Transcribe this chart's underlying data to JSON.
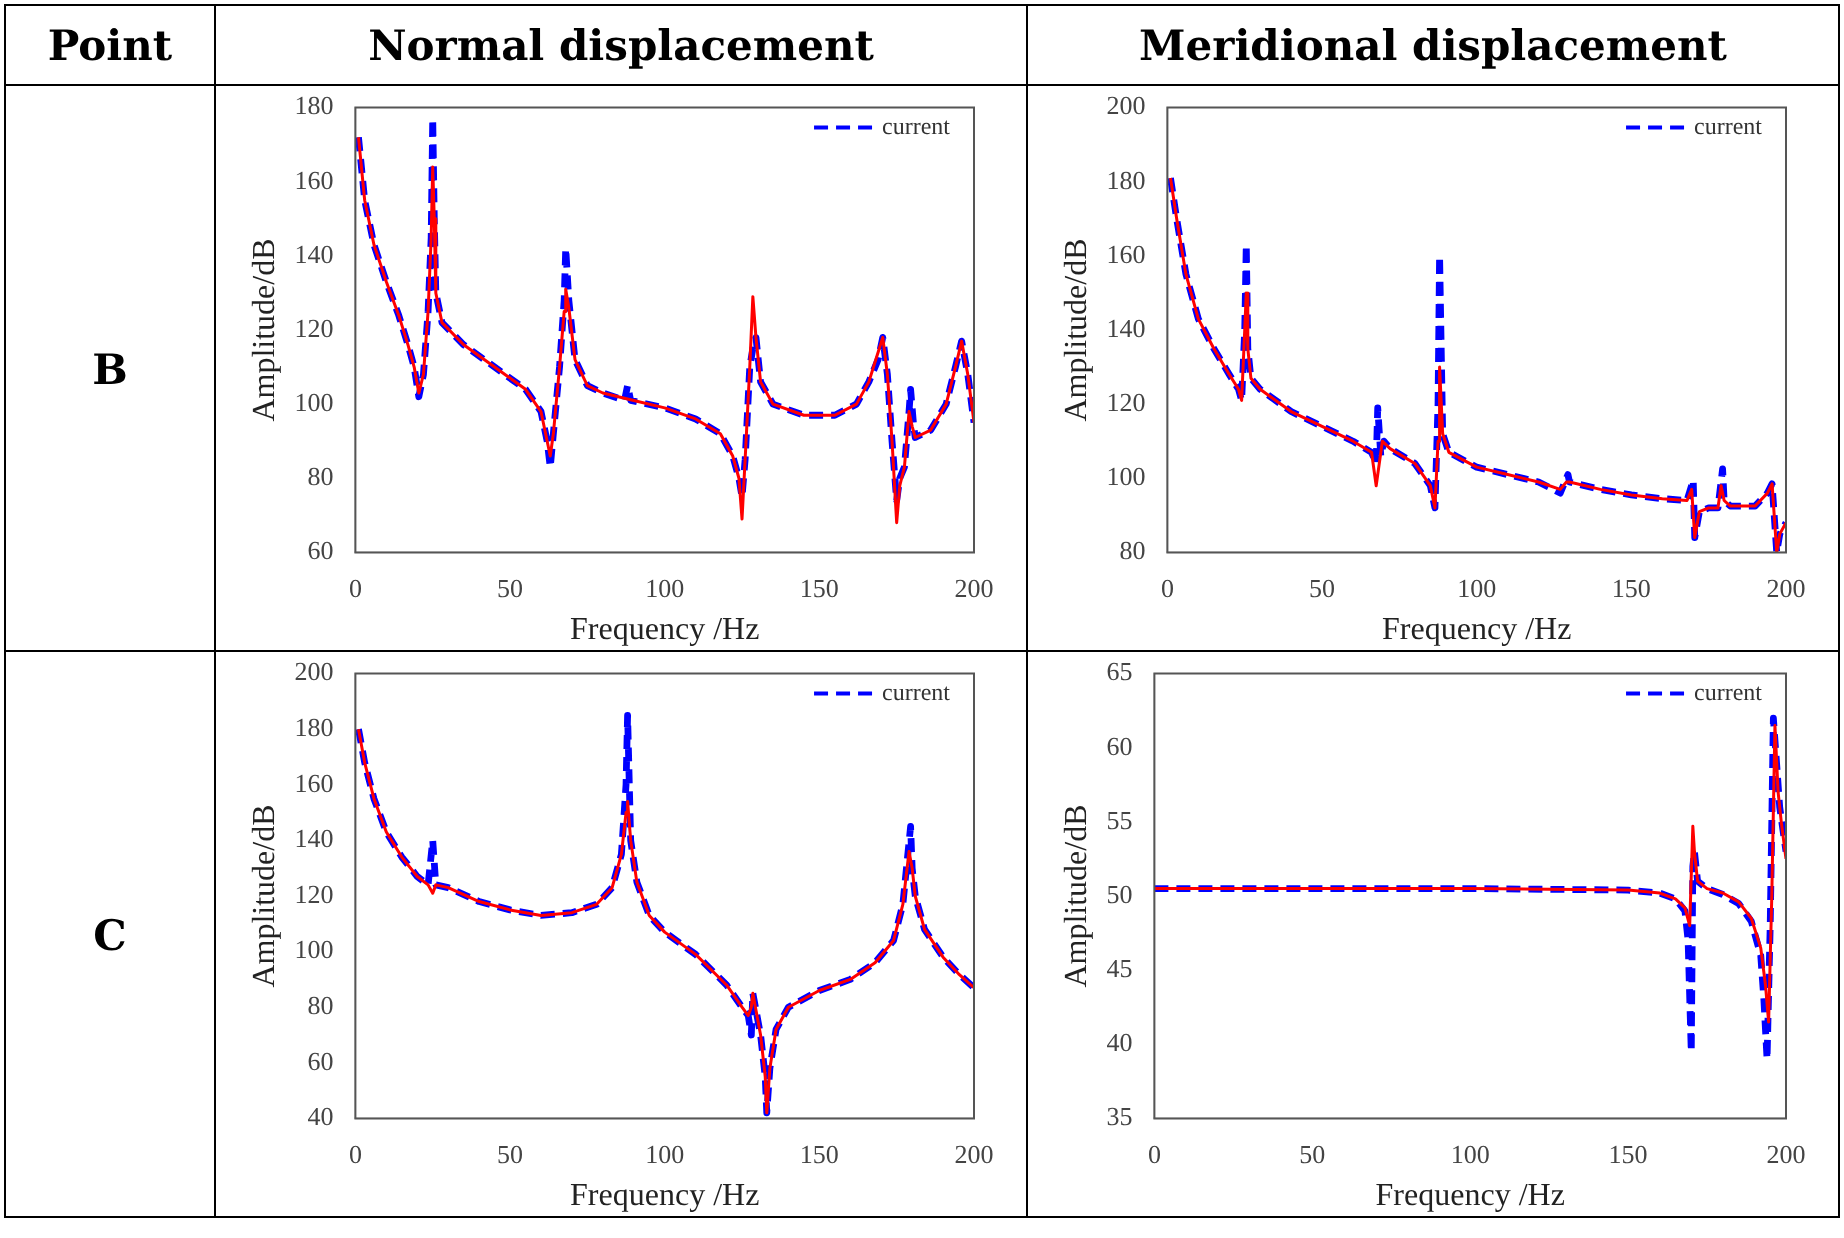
{
  "chart_data": [
    {
      "type": "other",
      "annotations": [
        "Point",
        "Normal displacement",
        "Meridional displacement",
        "B",
        "C"
      ]
    },
    {
      "type": "line",
      "xlabel": "Frequency /Hz",
      "ylabel": "Amplitude/dB",
      "xlim": [
        0,
        200
      ],
      "xticks": [
        0,
        50,
        100,
        150,
        200
      ],
      "ylim": [
        60,
        180
      ],
      "yticks": [
        60,
        80,
        100,
        120,
        140,
        160,
        180
      ],
      "legend": "top right",
      "series": [
        {
          "name": "current",
          "color": "#0000ff",
          "line_style": "dashed",
          "x": [
            1,
            3,
            6,
            10,
            14,
            17,
            19,
            20.5,
            22,
            23.5,
            24.5,
            25,
            25.5,
            26,
            28,
            35,
            45,
            55,
            60,
            62,
            63,
            64,
            66,
            67.5,
            68,
            69,
            71,
            75,
            80,
            87,
            88,
            89,
            100,
            110,
            118,
            122,
            124,
            125,
            126,
            127.5,
            128.5,
            129.5,
            131,
            135,
            145,
            155,
            162,
            166,
            169,
            170.5,
            172,
            173.5,
            175,
            176,
            177.5,
            179,
            179.5,
            180.5,
            181,
            186,
            191,
            194,
            196,
            198,
            200
          ],
          "values": [
            172,
            155,
            143,
            133,
            124,
            116,
            110,
            102,
            108,
            125,
            145,
            177,
            150,
            130,
            122,
            116,
            110,
            104,
            98,
            90,
            83,
            92,
            110,
            128,
            142,
            128,
            112,
            105,
            103,
            101,
            105,
            101,
            99,
            96,
            92,
            86,
            80,
            75,
            85,
            110,
            115,
            118,
            106,
            100,
            97,
            97,
            100,
            106,
            112,
            118,
            108,
            90,
            74,
            80,
            83,
            98,
            104,
            94,
            91,
            93,
            100,
            110,
            117,
            108,
            95
          ]
        },
        {
          "color": "#ff0000",
          "line_style": "solid",
          "x": [
            1,
            3,
            6,
            10,
            14,
            17,
            19,
            20.5,
            22,
            23.5,
            24.5,
            25,
            25.5,
            26,
            28,
            35,
            45,
            55,
            60,
            62,
            63,
            64,
            66,
            67.5,
            68,
            69,
            71,
            75,
            80,
            90,
            100,
            110,
            118,
            122,
            124,
            125,
            126,
            127.5,
            128.5,
            129.5,
            131,
            135,
            145,
            155,
            162,
            166,
            169,
            170.5,
            172,
            173.5,
            175,
            176,
            177.5,
            179,
            180,
            181,
            186,
            191,
            194,
            196,
            198,
            200
          ],
          "values": [
            172,
            155,
            143,
            133,
            124,
            116,
            110,
            103,
            108,
            125,
            145,
            164,
            150,
            130,
            122,
            116,
            110,
            104,
            98,
            90,
            86,
            92,
            110,
            125,
            131,
            126,
            112,
            105,
            103,
            101,
            99,
            96,
            92,
            86,
            80,
            69,
            85,
            110,
            129,
            118,
            106,
            100,
            97,
            97,
            100,
            106,
            114,
            118,
            108,
            90,
            68,
            78,
            83,
            98,
            94,
            91,
            93,
            100,
            110,
            117,
            108,
            95
          ]
        }
      ]
    },
    {
      "type": "line",
      "xlabel": "Frequency /Hz",
      "ylabel": "Amplitude/dB",
      "xlim": [
        0,
        200
      ],
      "xticks": [
        0,
        50,
        100,
        150,
        200
      ],
      "ylim": [
        80,
        200
      ],
      "yticks": [
        80,
        100,
        120,
        140,
        160,
        180,
        200
      ],
      "legend": "top right",
      "series": [
        {
          "name": "current",
          "color": "#0000ff",
          "line_style": "dashed",
          "x": [
            1,
            3,
            6,
            10,
            15,
            20,
            23,
            24,
            25,
            25.5,
            26,
            27,
            30,
            40,
            50,
            60,
            66,
            67.5,
            68,
            69,
            70,
            72,
            80,
            85,
            86.5,
            87.5,
            88,
            89,
            91,
            100,
            110,
            120,
            127,
            129.5,
            130,
            140,
            150,
            160,
            168,
            170,
            170.5,
            172,
            175,
            178,
            179.5,
            180,
            182,
            190,
            194,
            195.5,
            197,
            198,
            200
          ],
          "values": [
            181,
            170,
            155,
            143,
            135,
            128,
            124,
            121,
            140,
            163,
            135,
            127,
            124,
            118,
            114,
            110,
            107,
            104,
            119,
            106,
            110,
            108,
            104,
            98,
            92,
            120,
            160,
            112,
            107,
            103,
            101,
            99,
            96,
            101,
            99,
            97,
            95.5,
            94.5,
            94,
            99.5,
            84,
            91,
            92,
            92,
            102.5,
            94,
            92.5,
            92.5,
            96,
            98.5,
            80,
            85,
            88
          ]
        },
        {
          "color": "#ff0000",
          "line_style": "solid",
          "x": [
            1,
            3,
            6,
            10,
            15,
            20,
            23,
            24,
            25,
            25.5,
            26,
            27,
            30,
            40,
            50,
            60,
            66,
            67.5,
            68.5,
            69.5,
            72,
            80,
            85,
            86.5,
            87.5,
            88,
            89,
            91,
            100,
            110,
            120,
            127,
            129,
            130,
            140,
            150,
            160,
            168,
            169.5,
            170.5,
            172,
            175,
            178,
            179,
            180,
            182,
            190,
            194,
            195.5,
            197,
            198,
            200
          ],
          "values": [
            181,
            170,
            155,
            143,
            135,
            128,
            124,
            121,
            140,
            150,
            135,
            127,
            124,
            118,
            114,
            110,
            107,
            98,
            104,
            110,
            108,
            104,
            98,
            92,
            110,
            130,
            112,
            107,
            103,
            101,
            99,
            97,
            99,
            99,
            97,
            95.5,
            94.5,
            94,
            97,
            84,
            91,
            92,
            92,
            98,
            94,
            92.5,
            92.5,
            96,
            98.5,
            80,
            85,
            88
          ]
        }
      ]
    },
    {
      "type": "line",
      "xlabel": "Frequency /Hz",
      "ylabel": "Amplitude/dB",
      "xlim": [
        0,
        200
      ],
      "xticks": [
        0,
        50,
        100,
        150,
        200
      ],
      "ylim": [
        40,
        200
      ],
      "yticks": [
        40,
        60,
        80,
        100,
        120,
        140,
        160,
        180,
        200
      ],
      "legend": "top right",
      "series": [
        {
          "name": "current",
          "color": "#0000ff",
          "line_style": "dashed",
          "x": [
            1,
            3,
            6,
            10,
            15,
            20,
            23.5,
            25,
            26,
            30,
            40,
            50,
            60,
            70,
            78,
            83,
            86,
            87.5,
            88,
            89,
            91,
            95,
            100,
            110,
            120,
            125,
            127,
            128,
            128.5,
            129.5,
            131,
            132.5,
            133,
            134,
            136,
            140,
            150,
            160,
            168,
            174,
            177,
            179.5,
            180,
            181,
            184,
            190,
            195,
            200
          ],
          "values": [
            180,
            168,
            155,
            143,
            134,
            127,
            124,
            140,
            124,
            123,
            118,
            115,
            113,
            114,
            117,
            123,
            135,
            160,
            185,
            140,
            125,
            113,
            107,
            99,
            88,
            80,
            77,
            70,
            85,
            79,
            70,
            55,
            42,
            58,
            72,
            80,
            86,
            90,
            96,
            104,
            117,
            145,
            130,
            120,
            108,
            98,
            92,
            87
          ]
        },
        {
          "color": "#ff0000",
          "line_style": "solid",
          "x": [
            1,
            3,
            6,
            10,
            15,
            20,
            23.5,
            25,
            26,
            30,
            40,
            50,
            60,
            70,
            78,
            83,
            86,
            87.5,
            88,
            89,
            91,
            95,
            100,
            110,
            120,
            125,
            127,
            128,
            128.5,
            129.5,
            131,
            132.5,
            133,
            134,
            136,
            140,
            150,
            160,
            168,
            174,
            177,
            179,
            180,
            181,
            184,
            190,
            195,
            200
          ],
          "values": [
            180,
            168,
            155,
            143,
            134,
            127,
            124,
            121,
            124,
            123,
            118,
            115,
            113,
            114,
            117,
            123,
            135,
            150,
            154,
            140,
            125,
            113,
            107,
            99,
            88,
            80,
            77,
            80,
            85,
            79,
            70,
            55,
            42,
            58,
            72,
            80,
            86,
            90,
            96,
            104,
            117,
            136,
            130,
            120,
            108,
            98,
            92,
            87
          ]
        }
      ]
    },
    {
      "type": "line",
      "xlabel": "Frequency /Hz",
      "ylabel": "Amplitude/dB",
      "xlim": [
        0,
        200
      ],
      "xticks": [
        0,
        50,
        100,
        150,
        200
      ],
      "ylim": [
        35,
        65
      ],
      "yticks": [
        35,
        40,
        45,
        50,
        55,
        60,
        65
      ],
      "legend": "top right",
      "series": [
        {
          "name": "current",
          "color": "#0000ff",
          "line_style": "dashed",
          "x": [
            0,
            50,
            100,
            150,
            160,
            165,
            168,
            169,
            170,
            170.5,
            171,
            172,
            175,
            180,
            185,
            189,
            192,
            193,
            194,
            195,
            196,
            197,
            198,
            200
          ],
          "values": [
            50.5,
            50.5,
            50.5,
            50.4,
            50.2,
            49.8,
            49,
            47,
            39.5,
            52,
            53,
            51,
            50.5,
            50.1,
            49.5,
            48.3,
            46,
            43,
            39,
            48,
            62,
            59,
            56,
            53
          ]
        },
        {
          "color": "#ff0000",
          "line_style": "solid",
          "x": [
            0,
            50,
            100,
            150,
            160,
            165,
            168,
            169.5,
            170.5,
            171,
            172,
            175,
            180,
            185,
            189,
            192,
            193.5,
            194.5,
            195.5,
            196.5,
            197.5,
            198.5,
            200
          ],
          "values": [
            50.5,
            50.5,
            50.5,
            50.4,
            50.2,
            49.8,
            49.2,
            48,
            54.7,
            53,
            51,
            50.5,
            50.2,
            49.6,
            48.5,
            46.5,
            44,
            41.5,
            50,
            61.5,
            57,
            55,
            52.5
          ]
        }
      ]
    }
  ]
}
